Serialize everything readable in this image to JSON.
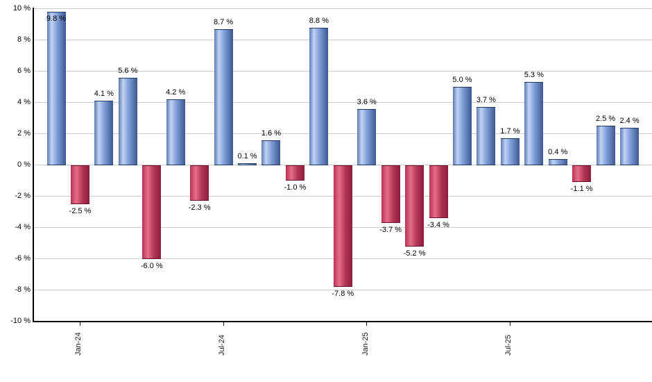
{
  "chart_data": {
    "type": "bar",
    "title": "",
    "xlabel": "",
    "ylabel": "",
    "ylim": [
      -10,
      10
    ],
    "grid": true,
    "legend": false,
    "values": [
      9.8,
      -2.5,
      4.1,
      5.6,
      -6.0,
      4.2,
      -2.3,
      8.7,
      0.1,
      1.6,
      -1.0,
      8.8,
      -7.8,
      3.6,
      -3.7,
      -5.2,
      -3.4,
      5.0,
      3.7,
      1.7,
      5.3,
      0.4,
      -1.1,
      2.5,
      2.4
    ],
    "bar_labels": [
      "9.8 %",
      "-2.5 %",
      "4.1 %",
      "5.6 %",
      "-6.0 %",
      "4.2 %",
      "-2.3 %",
      "8.7 %",
      "0.1 %",
      "1.6 %",
      "-1.0 %",
      "8.8 %",
      "-7.8 %",
      "3.6 %",
      "-3.7 %",
      "-5.2 %",
      "-3.4 %",
      "5.0 %",
      "3.7 %",
      "1.7 %",
      "5.3 %",
      "0.4 %",
      "-1.1 %",
      "2.5 %",
      "2.4 %"
    ],
    "x_ticks": [
      {
        "index": 1,
        "label": "Jan-24"
      },
      {
        "index": 7,
        "label": "Jul-24"
      },
      {
        "index": 13,
        "label": "Jan-25"
      },
      {
        "index": 19,
        "label": "Jul-25"
      }
    ],
    "y_ticks": [
      {
        "value": 10,
        "label": "10 %"
      },
      {
        "value": 8,
        "label": "8 %"
      },
      {
        "value": 6,
        "label": "6 %"
      },
      {
        "value": 4,
        "label": "4 %"
      },
      {
        "value": 2,
        "label": "2 %"
      },
      {
        "value": 0,
        "label": "0 %"
      },
      {
        "value": -2,
        "label": "-2 %"
      },
      {
        "value": -4,
        "label": "-4 %"
      },
      {
        "value": -6,
        "label": "-6 %"
      },
      {
        "value": -8,
        "label": "-8 %"
      },
      {
        "value": -10,
        "label": "-10 %"
      }
    ],
    "colors": {
      "positive_gradient": [
        "#5d7bb2",
        "#c0d3f4",
        "#86a3dc",
        "#3b5890"
      ],
      "positive_border": "#203a66",
      "negative_gradient": [
        "#b83352",
        "#e56e8b",
        "#b33756",
        "#8c1c3c"
      ],
      "negative_border": "#6b1129",
      "gridline": "#cccccc",
      "axis": "#000000",
      "label_text": "#000000"
    }
  }
}
